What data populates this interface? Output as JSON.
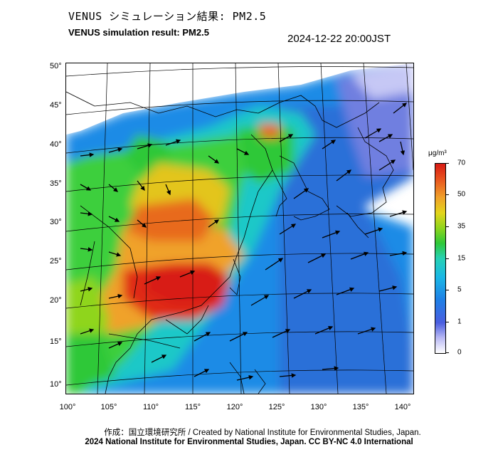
{
  "header": {
    "title_jp": "VENUS シミュレーション結果: PM2.5",
    "title_en": "VENUS simulation result: PM2.5",
    "timestamp": "2024-12-22 20:00JST"
  },
  "map": {
    "lat_labels": [
      "50°",
      "45°",
      "40°",
      "35°",
      "30°",
      "25°",
      "20°",
      "15°",
      "10°"
    ],
    "lon_labels": [
      "100°",
      "105°",
      "110°",
      "115°",
      "120°",
      "125°",
      "130°",
      "135°",
      "140°"
    ]
  },
  "colorbar": {
    "unit": "μg/m³",
    "ticks": [
      "70",
      "50",
      "35",
      "15",
      "5",
      "1",
      "0"
    ],
    "colors": {
      "low": "#ffffff",
      "blue": "#1f7fe6",
      "cyan": "#1ab7e6",
      "green": "#2ec838",
      "yellow": "#e3d51b",
      "orange": "#f0a22a",
      "red": "#d81b14"
    }
  },
  "footer": {
    "credit_line": "作成：国立環境研究所 / Created by National Institute for Environmental Studies, Japan.",
    "license_line": "2024 National Institute for Environmental Studies, Japan. CC BY-NC 4.0 International"
  }
}
